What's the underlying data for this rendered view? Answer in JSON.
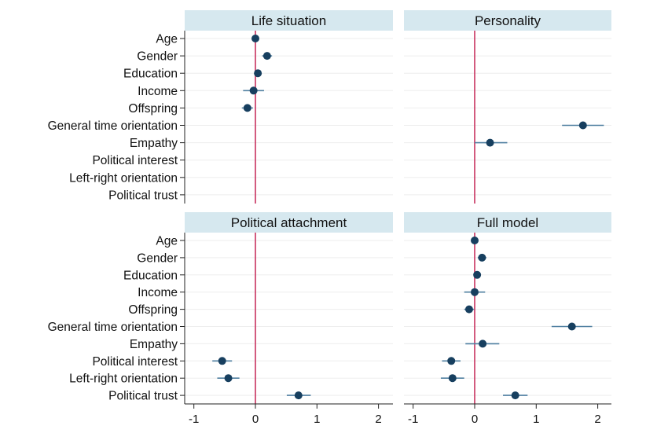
{
  "chart_data": {
    "type": "scatter",
    "subtype": "coefficient-plot",
    "title": "",
    "xlabel": "",
    "ylabel": "",
    "xlim": [
      -1.1,
      2.2
    ],
    "xticks": [
      -1,
      0,
      1,
      2
    ],
    "xtick_labels": [
      "-1",
      "0",
      "1",
      "2"
    ],
    "reference_line": 0,
    "grid": true,
    "colors": {
      "strip": "#d6e8ef",
      "point": "#173f5f",
      "ci": "#4f7fa0",
      "reference": "#c8325f",
      "grid": "#eeeeee"
    },
    "variables": [
      "Age",
      "Gender",
      "Education",
      "Income",
      "Offspring",
      "General time orientation",
      "Empathy",
      "Political interest",
      "Left-right orientation",
      "Political trust"
    ],
    "panels": [
      {
        "title": "Life situation",
        "estimates": [
          {
            "variable": "Age",
            "x": 0.0,
            "ci": [
              -0.02,
              0.02
            ]
          },
          {
            "variable": "Gender",
            "x": 0.19,
            "ci": [
              0.11,
              0.27
            ]
          },
          {
            "variable": "Education",
            "x": 0.04,
            "ci": [
              0.0,
              0.08
            ]
          },
          {
            "variable": "Income",
            "x": -0.03,
            "ci": [
              -0.2,
              0.14
            ]
          },
          {
            "variable": "Offspring",
            "x": -0.13,
            "ci": [
              -0.22,
              -0.04
            ]
          }
        ]
      },
      {
        "title": "Personality",
        "estimates": [
          {
            "variable": "General time orientation",
            "x": 1.76,
            "ci": [
              1.42,
              2.1
            ]
          },
          {
            "variable": "Empathy",
            "x": 0.25,
            "ci": [
              0.0,
              0.53
            ]
          }
        ]
      },
      {
        "title": "Political attachment",
        "estimates": [
          {
            "variable": "Political interest",
            "x": -0.54,
            "ci": [
              -0.7,
              -0.38
            ]
          },
          {
            "variable": "Left-right orientation",
            "x": -0.44,
            "ci": [
              -0.62,
              -0.26
            ]
          },
          {
            "variable": "Political trust",
            "x": 0.7,
            "ci": [
              0.51,
              0.9
            ]
          }
        ]
      },
      {
        "title": "Full model",
        "estimates": [
          {
            "variable": "Age",
            "x": 0.0,
            "ci": [
              -0.02,
              0.02
            ]
          },
          {
            "variable": "Gender",
            "x": 0.12,
            "ci": [
              0.05,
              0.19
            ]
          },
          {
            "variable": "Education",
            "x": 0.04,
            "ci": [
              0.0,
              0.08
            ]
          },
          {
            "variable": "Income",
            "x": 0.0,
            "ci": [
              -0.17,
              0.17
            ]
          },
          {
            "variable": "Offspring",
            "x": -0.09,
            "ci": [
              -0.17,
              -0.01
            ]
          },
          {
            "variable": "General time orientation",
            "x": 1.58,
            "ci": [
              1.25,
              1.91
            ]
          },
          {
            "variable": "Empathy",
            "x": 0.13,
            "ci": [
              -0.15,
              0.4
            ]
          },
          {
            "variable": "Political interest",
            "x": -0.38,
            "ci": [
              -0.53,
              -0.23
            ]
          },
          {
            "variable": "Left-right orientation",
            "x": -0.36,
            "ci": [
              -0.55,
              -0.17
            ]
          },
          {
            "variable": "Political trust",
            "x": 0.66,
            "ci": [
              0.46,
              0.86
            ]
          }
        ]
      }
    ]
  }
}
